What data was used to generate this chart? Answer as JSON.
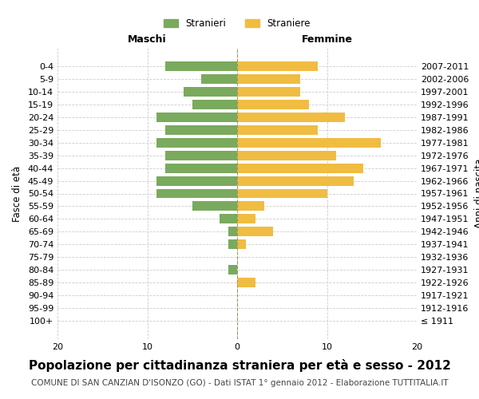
{
  "age_groups": [
    "100+",
    "95-99",
    "90-94",
    "85-89",
    "80-84",
    "75-79",
    "70-74",
    "65-69",
    "60-64",
    "55-59",
    "50-54",
    "45-49",
    "40-44",
    "35-39",
    "30-34",
    "25-29",
    "20-24",
    "15-19",
    "10-14",
    "5-9",
    "0-4"
  ],
  "birth_years": [
    "≤ 1911",
    "1912-1916",
    "1917-1921",
    "1922-1926",
    "1927-1931",
    "1932-1936",
    "1937-1941",
    "1942-1946",
    "1947-1951",
    "1952-1956",
    "1957-1961",
    "1962-1966",
    "1967-1971",
    "1972-1976",
    "1977-1981",
    "1982-1986",
    "1987-1991",
    "1992-1996",
    "1997-2001",
    "2002-2006",
    "2007-2011"
  ],
  "maschi": [
    0,
    0,
    0,
    0,
    1,
    0,
    1,
    1,
    2,
    5,
    9,
    9,
    8,
    8,
    9,
    8,
    9,
    5,
    6,
    4,
    8
  ],
  "femmine": [
    0,
    0,
    0,
    2,
    0,
    0,
    1,
    4,
    2,
    3,
    10,
    13,
    14,
    11,
    16,
    9,
    12,
    8,
    7,
    7,
    9
  ],
  "maschi_color": "#7aaa5d",
  "femmine_color": "#f0bc42",
  "bar_height": 0.75,
  "xlim": [
    -20,
    20
  ],
  "xticks": [
    -20,
    -10,
    0,
    10,
    20
  ],
  "xticklabels": [
    "20",
    "10",
    "0",
    "10",
    "20"
  ],
  "title": "Popolazione per cittadinanza straniera per età e sesso - 2012",
  "subtitle": "COMUNE DI SAN CANZIAN D'ISONZO (GO) - Dati ISTAT 1° gennaio 2012 - Elaborazione TUTTITALIA.IT",
  "ylabel_left": "Fasce di età",
  "ylabel_right": "Anni di nascita",
  "header_left": "Maschi",
  "header_right": "Femmine",
  "legend_maschi": "Stranieri",
  "legend_femmine": "Straniere",
  "bg_color": "#ffffff",
  "grid_color": "#cccccc",
  "title_fontsize": 11,
  "subtitle_fontsize": 7.5,
  "axis_fontsize": 8.5,
  "label_fontsize": 8
}
